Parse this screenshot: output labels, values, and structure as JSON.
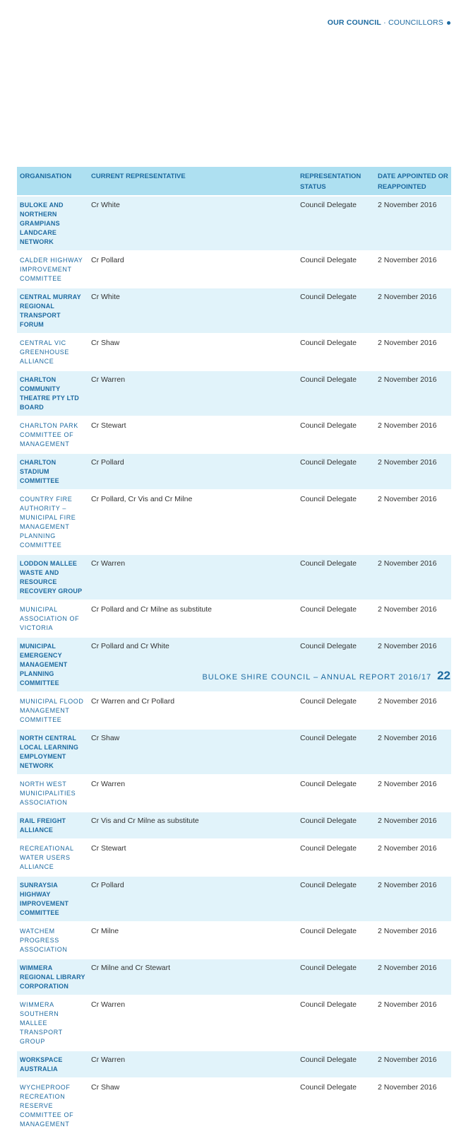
{
  "header": {
    "section": "OUR COUNCIL",
    "subsection": "COUNCILLORS"
  },
  "table": {
    "columns": [
      "ORGANISATION",
      "CURRENT REPRESENTATIVE",
      "REPRESENTATION STATUS",
      "DATE APPOINTED OR REAPPOINTED"
    ],
    "rows": [
      {
        "org": "BULOKE AND NORTHERN GRAMPIANS LANDCARE NETWORK",
        "rep": "Cr White",
        "status": "Council Delegate",
        "date": "2 November 2016"
      },
      {
        "org": "CALDER HIGHWAY IMPROVEMENT COMMITTEE",
        "rep": "Cr Pollard",
        "status": "Council Delegate",
        "date": "2 November 2016"
      },
      {
        "org": "CENTRAL MURRAY REGIONAL TRANSPORT FORUM",
        "rep": "Cr White",
        "status": "Council Delegate",
        "date": "2 November 2016"
      },
      {
        "org": "CENTRAL VIC GREENHOUSE ALLIANCE",
        "rep": "Cr Shaw",
        "status": "Council Delegate",
        "date": "2 November 2016"
      },
      {
        "org": "CHARLTON COMMUNITY THEATRE PTY LTD BOARD",
        "rep": "Cr Warren",
        "status": "Council Delegate",
        "date": "2 November 2016"
      },
      {
        "org": "CHARLTON PARK COMMITTEE OF MANAGEMENT",
        "rep": "Cr Stewart",
        "status": "Council Delegate",
        "date": "2 November 2016"
      },
      {
        "org": "CHARLTON STADIUM COMMITTEE",
        "rep": "Cr Pollard",
        "status": "Council Delegate",
        "date": "2 November 2016"
      },
      {
        "org": "COUNTRY FIRE AUTHORITY – MUNICIPAL FIRE MANAGEMENT PLANNING COMMITTEE",
        "rep": "Cr Pollard, Cr Vis and Cr Milne",
        "status": "Council Delegate",
        "date": "2 November 2016"
      },
      {
        "org": "LODDON MALLEE WASTE AND RESOURCE RECOVERY GROUP",
        "rep": "Cr Warren",
        "status": "Council Delegate",
        "date": "2 November 2016"
      },
      {
        "org": "MUNICIPAL ASSOCIATION OF VICTORIA",
        "rep": "Cr Pollard and Cr Milne as substitute",
        "status": "Council Delegate",
        "date": "2 November 2016"
      },
      {
        "org": "MUNICIPAL EMERGENCY MANAGEMENT PLANNING COMMITTEE",
        "rep": "Cr Pollard and Cr White",
        "status": "Council Delegate",
        "date": "2 November 2016"
      },
      {
        "org": "MUNICIPAL FLOOD MANAGEMENT COMMITTEE",
        "rep": "Cr Warren and Cr Pollard",
        "status": "Council Delegate",
        "date": "2 November 2016"
      },
      {
        "org": "NORTH CENTRAL LOCAL LEARNING EMPLOYMENT NETWORK",
        "rep": "Cr Shaw",
        "status": "Council Delegate",
        "date": "2 November 2016"
      },
      {
        "org": "NORTH WEST MUNICIPALITIES ASSOCIATION",
        "rep": "Cr Warren",
        "status": "Council Delegate",
        "date": "2 November 2016"
      },
      {
        "org": "RAIL FREIGHT ALLIANCE",
        "rep": "Cr Vis and Cr Milne as substitute",
        "status": "Council Delegate",
        "date": "2 November 2016"
      },
      {
        "org": "RECREATIONAL WATER USERS ALLIANCE",
        "rep": "Cr Stewart",
        "status": "Council Delegate",
        "date": "2 November 2016"
      },
      {
        "org": "SUNRAYSIA HIGHWAY IMPROVEMENT COMMITTEE",
        "rep": "Cr Pollard",
        "status": "Council Delegate",
        "date": "2 November 2016"
      },
      {
        "org": "WATCHEM PROGRESS ASSOCIATION",
        "rep": "Cr Milne",
        "status": "Council Delegate",
        "date": "2 November 2016"
      },
      {
        "org": "WIMMERA REGIONAL LIBRARY CORPORATION",
        "rep": "Cr Milne and Cr Stewart",
        "status": "Council Delegate",
        "date": "2 November 2016"
      },
      {
        "org": "WIMMERA SOUTHERN MALLEE TRANSPORT GROUP",
        "rep": "Cr Warren",
        "status": "Council Delegate",
        "date": "2 November 2016"
      },
      {
        "org": "WORKSPACE AUSTRALIA",
        "rep": "Cr Warren",
        "status": "Council Delegate",
        "date": "2 November 2016"
      },
      {
        "org": "WYCHEPROOF RECREATION RESERVE COMMITTEE OF MANAGEMENT",
        "rep": "Cr Shaw",
        "status": "Council Delegate",
        "date": "2 November 2016"
      }
    ]
  },
  "footer": {
    "text": "BULOKE SHIRE COUNCIL – ANNUAL REPORT 2016/17",
    "page": "22"
  },
  "colors": {
    "accent": "#1d6aa0",
    "header_bg": "#aee0f1",
    "alt_row_bg": "#e1f3fa"
  }
}
